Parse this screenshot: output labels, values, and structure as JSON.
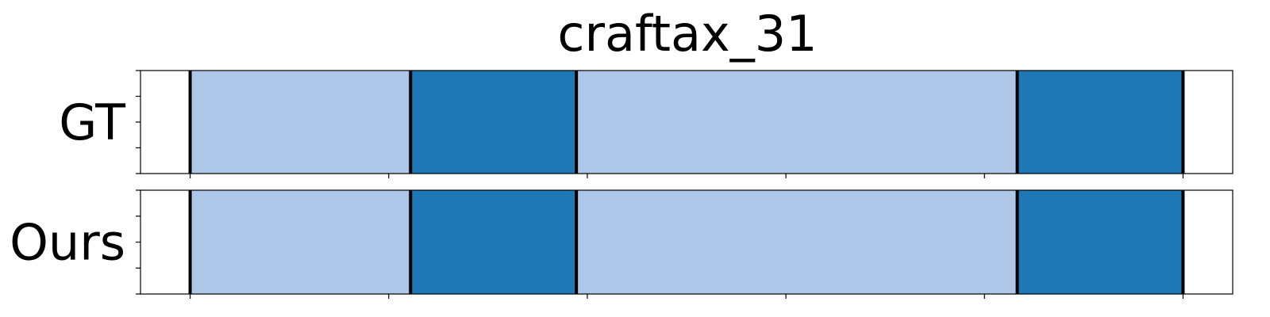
{
  "chart_data": {
    "type": "segmentation-timeline",
    "title": "craftax_31",
    "x_range": [
      0,
      1100
    ],
    "x_ticks": [
      50,
      250,
      450,
      650,
      850,
      1050
    ],
    "rows": [
      {
        "label": "GT",
        "segments": [
          {
            "start": 50,
            "end": 272,
            "color": "#aec7e8"
          },
          {
            "start": 272,
            "end": 439,
            "color": "#1f77b4"
          },
          {
            "start": 439,
            "end": 883,
            "color": "#aec7e8"
          },
          {
            "start": 883,
            "end": 1050,
            "color": "#1f77b4"
          }
        ],
        "boundaries": [
          50,
          272,
          439,
          883,
          1050
        ]
      },
      {
        "label": "Ours",
        "segments": [
          {
            "start": 50,
            "end": 272,
            "color": "#aec7e8"
          },
          {
            "start": 272,
            "end": 439,
            "color": "#1f77b4"
          },
          {
            "start": 439,
            "end": 883,
            "color": "#aec7e8"
          },
          {
            "start": 883,
            "end": 1050,
            "color": "#1f77b4"
          }
        ],
        "boundaries": [
          50,
          272,
          439,
          883,
          1050
        ]
      }
    ],
    "colors": {
      "light": "#aec7e8",
      "dark": "#1f77b4"
    },
    "grid": false,
    "legend": "none"
  }
}
